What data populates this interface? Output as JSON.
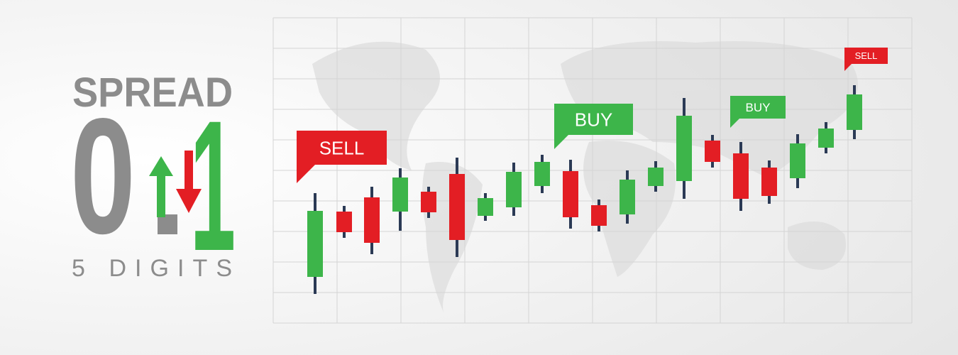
{
  "logo": {
    "title": "SPREAD",
    "big_left": "0",
    "big_right": "1",
    "subtitle": "5 DIGITS"
  },
  "signals": [
    {
      "label": "SELL"
    },
    {
      "label": "BUY"
    },
    {
      "label": "BUY"
    },
    {
      "label": "SELL"
    }
  ]
}
